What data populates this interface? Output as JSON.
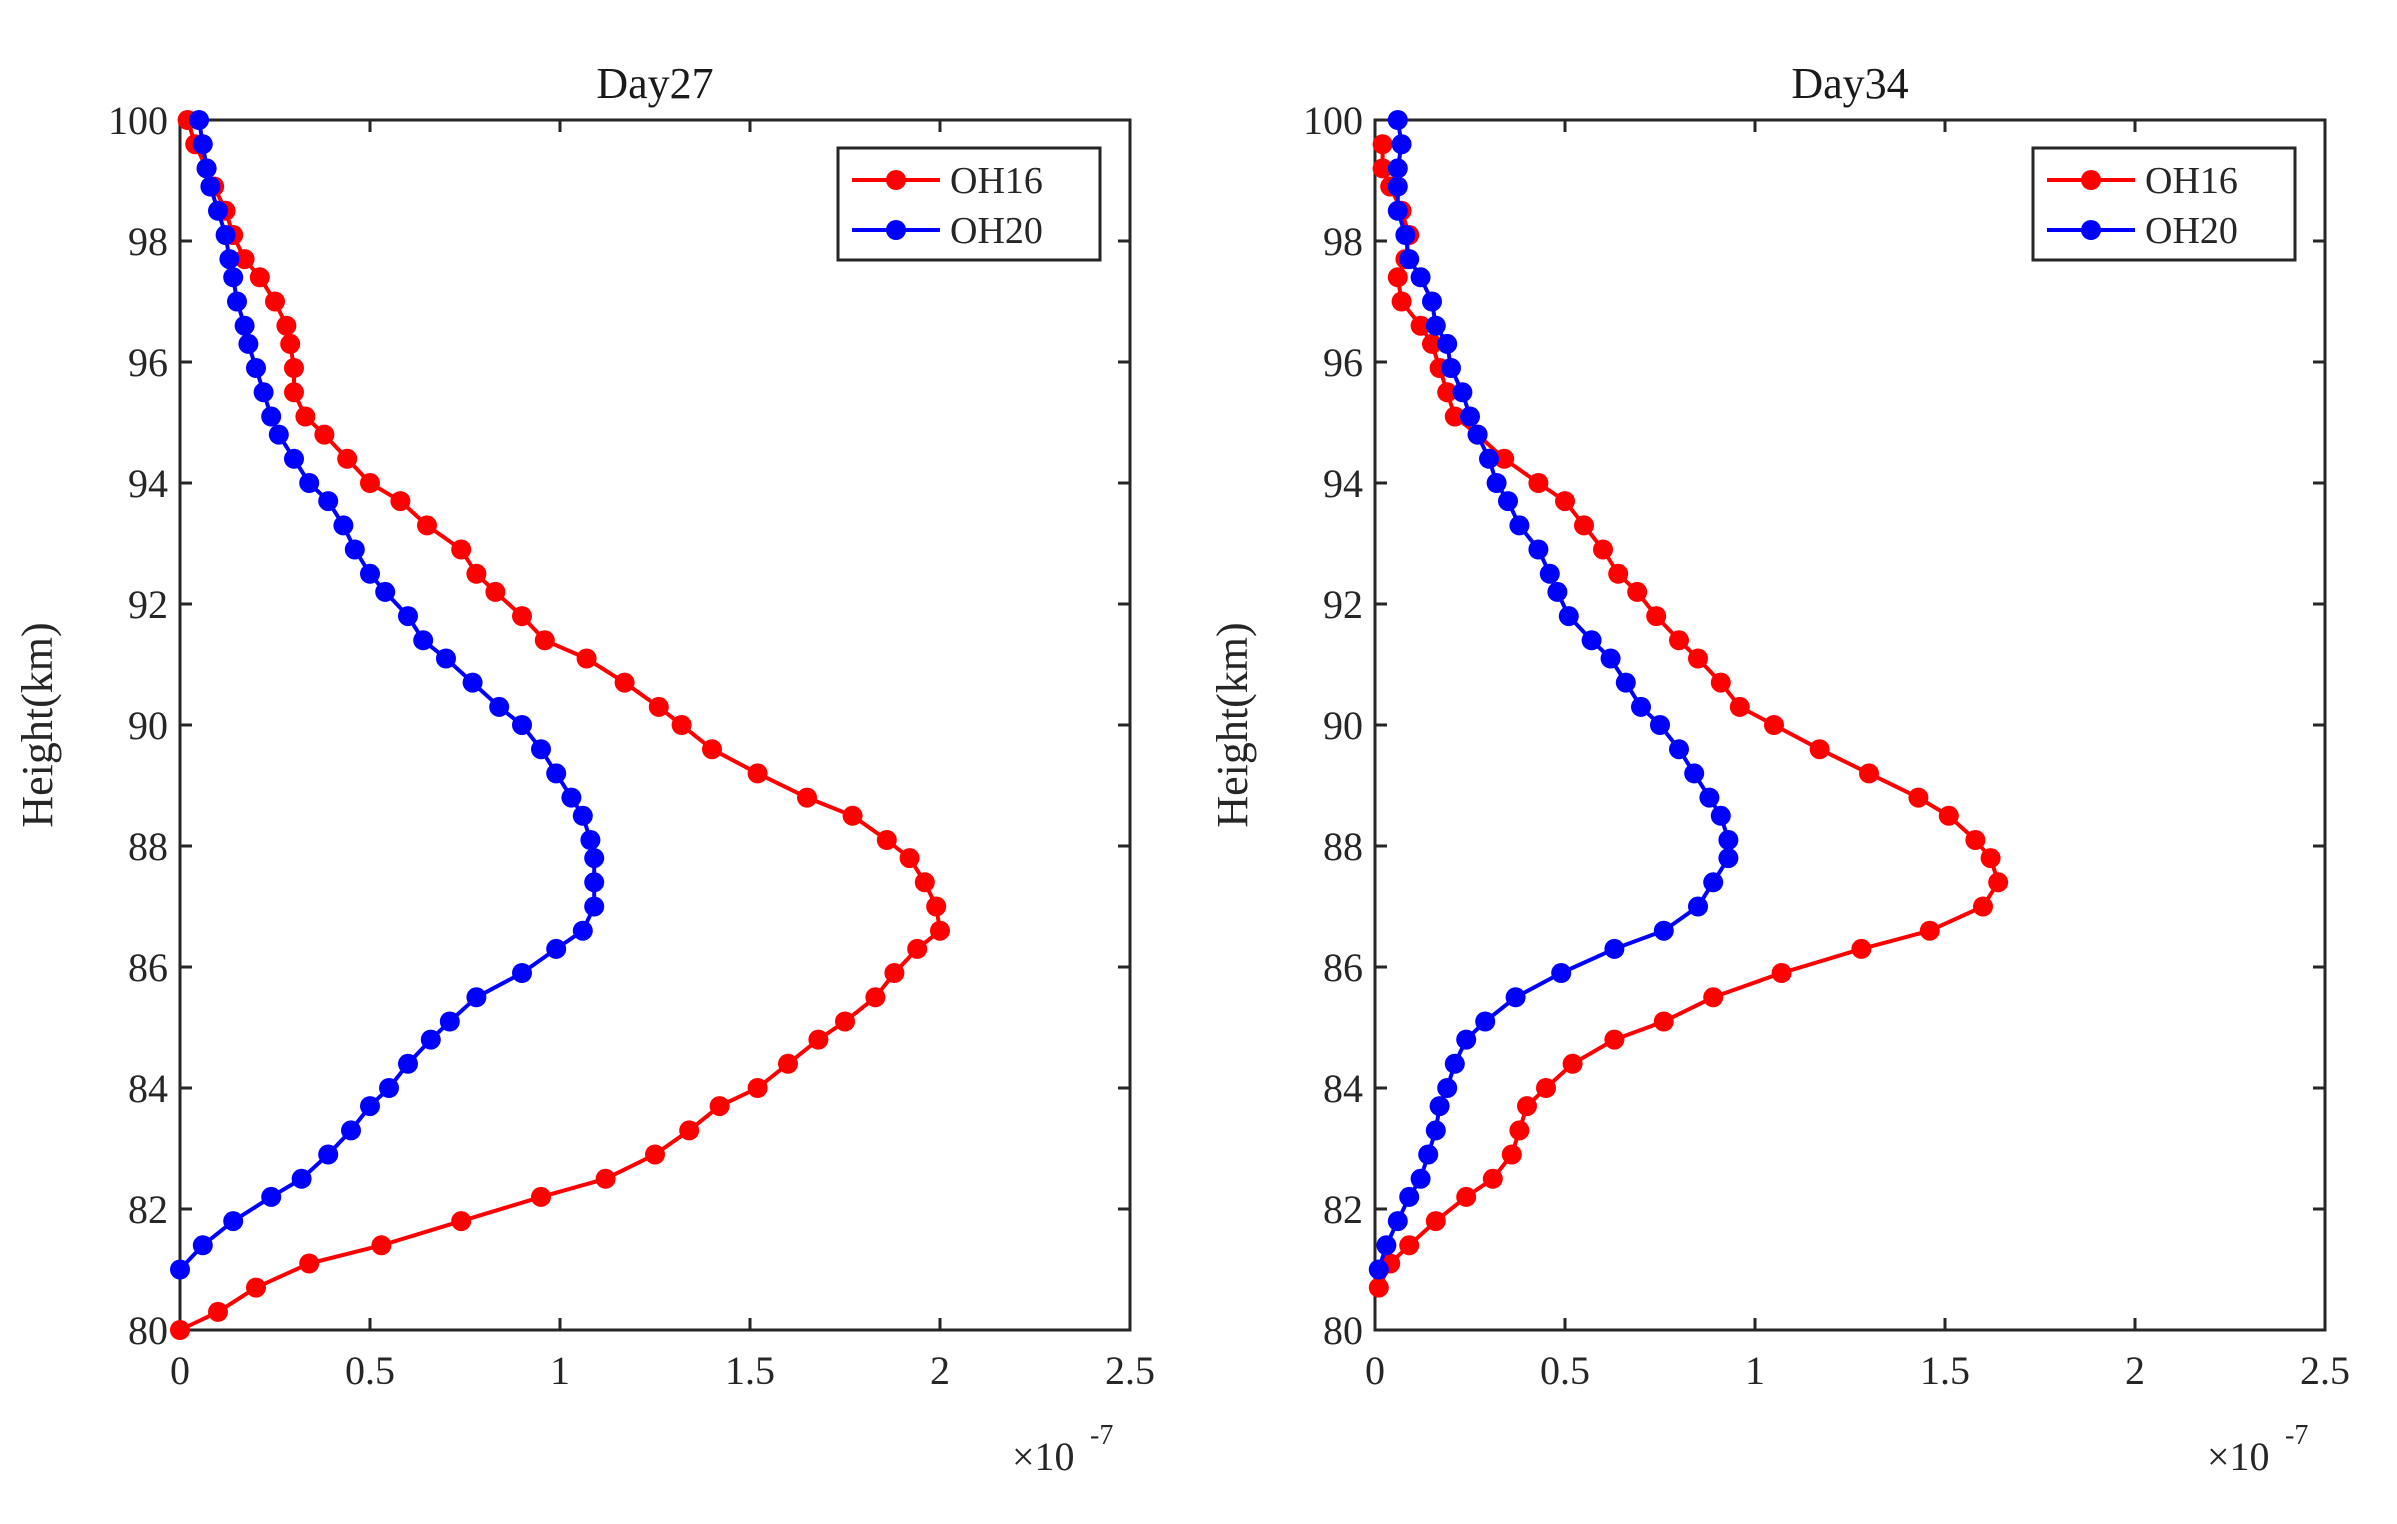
{
  "chart_data": [
    {
      "type": "line",
      "title": "Day27",
      "ylabel": "Height(km)",
      "xlabel": "",
      "x_multiplier": {
        "base": "×10",
        "exponent": "-7"
      },
      "xlim": [
        0,
        2.5
      ],
      "ylim": [
        80,
        100
      ],
      "xticks": [
        "0",
        "0.5",
        "1",
        "1.5",
        "2",
        "2.5"
      ],
      "yticks": [
        "80",
        "82",
        "84",
        "86",
        "88",
        "90",
        "92",
        "94",
        "96",
        "98",
        "100"
      ],
      "legend_position": "top-right",
      "series": [
        {
          "name": "OH16",
          "color": "#ff0000",
          "points": [
            [
              0.0,
              80.0
            ],
            [
              0.1,
              80.3
            ],
            [
              0.2,
              80.7
            ],
            [
              0.34,
              81.1
            ],
            [
              0.53,
              81.4
            ],
            [
              0.74,
              81.8
            ],
            [
              0.95,
              82.2
            ],
            [
              1.12,
              82.5
            ],
            [
              1.25,
              82.9
            ],
            [
              1.34,
              83.3
            ],
            [
              1.42,
              83.7
            ],
            [
              1.52,
              84.0
            ],
            [
              1.6,
              84.4
            ],
            [
              1.68,
              84.8
            ],
            [
              1.75,
              85.1
            ],
            [
              1.83,
              85.5
            ],
            [
              1.88,
              85.9
            ],
            [
              1.94,
              86.3
            ],
            [
              2.0,
              86.6
            ],
            [
              1.99,
              87.0
            ],
            [
              1.96,
              87.4
            ],
            [
              1.92,
              87.8
            ],
            [
              1.86,
              88.1
            ],
            [
              1.77,
              88.5
            ],
            [
              1.65,
              88.8
            ],
            [
              1.52,
              89.2
            ],
            [
              1.4,
              89.6
            ],
            [
              1.32,
              90.0
            ],
            [
              1.26,
              90.3
            ],
            [
              1.17,
              90.7
            ],
            [
              1.07,
              91.1
            ],
            [
              0.96,
              91.4
            ],
            [
              0.9,
              91.8
            ],
            [
              0.83,
              92.2
            ],
            [
              0.78,
              92.5
            ],
            [
              0.74,
              92.9
            ],
            [
              0.65,
              93.3
            ],
            [
              0.58,
              93.7
            ],
            [
              0.5,
              94.0
            ],
            [
              0.44,
              94.4
            ],
            [
              0.38,
              94.8
            ],
            [
              0.33,
              95.1
            ],
            [
              0.3,
              95.5
            ],
            [
              0.3,
              95.9
            ],
            [
              0.29,
              96.3
            ],
            [
              0.28,
              96.6
            ],
            [
              0.25,
              97.0
            ],
            [
              0.21,
              97.4
            ],
            [
              0.17,
              97.7
            ],
            [
              0.14,
              98.1
            ],
            [
              0.12,
              98.5
            ],
            [
              0.09,
              98.9
            ],
            [
              0.07,
              99.2
            ],
            [
              0.04,
              99.6
            ],
            [
              0.02,
              100.0
            ]
          ]
        },
        {
          "name": "OH20",
          "color": "#0000ff",
          "points": [
            [
              0.0,
              81.0
            ],
            [
              0.06,
              81.4
            ],
            [
              0.14,
              81.8
            ],
            [
              0.24,
              82.2
            ],
            [
              0.32,
              82.5
            ],
            [
              0.39,
              82.9
            ],
            [
              0.45,
              83.3
            ],
            [
              0.5,
              83.7
            ],
            [
              0.55,
              84.0
            ],
            [
              0.6,
              84.4
            ],
            [
              0.66,
              84.8
            ],
            [
              0.71,
              85.1
            ],
            [
              0.78,
              85.5
            ],
            [
              0.9,
              85.9
            ],
            [
              0.99,
              86.3
            ],
            [
              1.06,
              86.6
            ],
            [
              1.09,
              87.0
            ],
            [
              1.09,
              87.4
            ],
            [
              1.09,
              87.8
            ],
            [
              1.08,
              88.1
            ],
            [
              1.06,
              88.5
            ],
            [
              1.03,
              88.8
            ],
            [
              0.99,
              89.2
            ],
            [
              0.95,
              89.6
            ],
            [
              0.9,
              90.0
            ],
            [
              0.84,
              90.3
            ],
            [
              0.77,
              90.7
            ],
            [
              0.7,
              91.1
            ],
            [
              0.64,
              91.4
            ],
            [
              0.6,
              91.8
            ],
            [
              0.54,
              92.2
            ],
            [
              0.5,
              92.5
            ],
            [
              0.46,
              92.9
            ],
            [
              0.43,
              93.3
            ],
            [
              0.39,
              93.7
            ],
            [
              0.34,
              94.0
            ],
            [
              0.3,
              94.4
            ],
            [
              0.26,
              94.8
            ],
            [
              0.24,
              95.1
            ],
            [
              0.22,
              95.5
            ],
            [
              0.2,
              95.9
            ],
            [
              0.18,
              96.3
            ],
            [
              0.17,
              96.6
            ],
            [
              0.15,
              97.0
            ],
            [
              0.14,
              97.4
            ],
            [
              0.13,
              97.7
            ],
            [
              0.12,
              98.1
            ],
            [
              0.1,
              98.5
            ],
            [
              0.08,
              98.9
            ],
            [
              0.07,
              99.2
            ],
            [
              0.06,
              99.6
            ],
            [
              0.05,
              100.0
            ]
          ]
        }
      ]
    },
    {
      "type": "line",
      "title": "Day34",
      "ylabel": "Height(km)",
      "xlabel": "",
      "x_multiplier": {
        "base": "×10",
        "exponent": "-7"
      },
      "xlim": [
        0,
        2.5
      ],
      "ylim": [
        80,
        100
      ],
      "xticks": [
        "0",
        "0.5",
        "1",
        "1.5",
        "2",
        "2.5"
      ],
      "yticks": [
        "80",
        "82",
        "84",
        "86",
        "88",
        "90",
        "92",
        "94",
        "96",
        "98",
        "100"
      ],
      "legend_position": "top-right",
      "series": [
        {
          "name": "OH16",
          "color": "#ff0000",
          "points": [
            [
              0.01,
              80.7
            ],
            [
              0.04,
              81.1
            ],
            [
              0.09,
              81.4
            ],
            [
              0.16,
              81.8
            ],
            [
              0.24,
              82.2
            ],
            [
              0.31,
              82.5
            ],
            [
              0.36,
              82.9
            ],
            [
              0.38,
              83.3
            ],
            [
              0.4,
              83.7
            ],
            [
              0.45,
              84.0
            ],
            [
              0.52,
              84.4
            ],
            [
              0.63,
              84.8
            ],
            [
              0.76,
              85.1
            ],
            [
              0.89,
              85.5
            ],
            [
              1.07,
              85.9
            ],
            [
              1.28,
              86.3
            ],
            [
              1.46,
              86.6
            ],
            [
              1.6,
              87.0
            ],
            [
              1.64,
              87.4
            ],
            [
              1.62,
              87.8
            ],
            [
              1.58,
              88.1
            ],
            [
              1.51,
              88.5
            ],
            [
              1.43,
              88.8
            ],
            [
              1.3,
              89.2
            ],
            [
              1.17,
              89.6
            ],
            [
              1.05,
              90.0
            ],
            [
              0.96,
              90.3
            ],
            [
              0.91,
              90.7
            ],
            [
              0.85,
              91.1
            ],
            [
              0.8,
              91.4
            ],
            [
              0.74,
              91.8
            ],
            [
              0.69,
              92.2
            ],
            [
              0.64,
              92.5
            ],
            [
              0.6,
              92.9
            ],
            [
              0.55,
              93.3
            ],
            [
              0.5,
              93.7
            ],
            [
              0.43,
              94.0
            ],
            [
              0.34,
              94.4
            ],
            [
              0.27,
              94.8
            ],
            [
              0.21,
              95.1
            ],
            [
              0.19,
              95.5
            ],
            [
              0.17,
              95.9
            ],
            [
              0.15,
              96.3
            ],
            [
              0.12,
              96.6
            ],
            [
              0.07,
              97.0
            ],
            [
              0.06,
              97.4
            ],
            [
              0.08,
              97.7
            ],
            [
              0.09,
              98.1
            ],
            [
              0.07,
              98.5
            ],
            [
              0.04,
              98.9
            ],
            [
              0.02,
              99.2
            ],
            [
              0.02,
              99.6
            ]
          ]
        },
        {
          "name": "OH20",
          "color": "#0000ff",
          "points": [
            [
              0.01,
              81.0
            ],
            [
              0.03,
              81.4
            ],
            [
              0.06,
              81.8
            ],
            [
              0.09,
              82.2
            ],
            [
              0.12,
              82.5
            ],
            [
              0.14,
              82.9
            ],
            [
              0.16,
              83.3
            ],
            [
              0.17,
              83.7
            ],
            [
              0.19,
              84.0
            ],
            [
              0.21,
              84.4
            ],
            [
              0.24,
              84.8
            ],
            [
              0.29,
              85.1
            ],
            [
              0.37,
              85.5
            ],
            [
              0.49,
              85.9
            ],
            [
              0.63,
              86.3
            ],
            [
              0.76,
              86.6
            ],
            [
              0.85,
              87.0
            ],
            [
              0.89,
              87.4
            ],
            [
              0.93,
              87.8
            ],
            [
              0.93,
              88.1
            ],
            [
              0.91,
              88.5
            ],
            [
              0.88,
              88.8
            ],
            [
              0.84,
              89.2
            ],
            [
              0.8,
              89.6
            ],
            [
              0.75,
              90.0
            ],
            [
              0.7,
              90.3
            ],
            [
              0.66,
              90.7
            ],
            [
              0.62,
              91.1
            ],
            [
              0.57,
              91.4
            ],
            [
              0.51,
              91.8
            ],
            [
              0.48,
              92.2
            ],
            [
              0.46,
              92.5
            ],
            [
              0.43,
              92.9
            ],
            [
              0.38,
              93.3
            ],
            [
              0.35,
              93.7
            ],
            [
              0.32,
              94.0
            ],
            [
              0.3,
              94.4
            ],
            [
              0.27,
              94.8
            ],
            [
              0.25,
              95.1
            ],
            [
              0.23,
              95.5
            ],
            [
              0.2,
              95.9
            ],
            [
              0.19,
              96.3
            ],
            [
              0.16,
              96.6
            ],
            [
              0.15,
              97.0
            ],
            [
              0.12,
              97.4
            ],
            [
              0.09,
              97.7
            ],
            [
              0.08,
              98.1
            ],
            [
              0.06,
              98.5
            ],
            [
              0.06,
              98.9
            ],
            [
              0.06,
              99.2
            ],
            [
              0.07,
              99.6
            ],
            [
              0.06,
              100.0
            ]
          ]
        }
      ]
    }
  ]
}
